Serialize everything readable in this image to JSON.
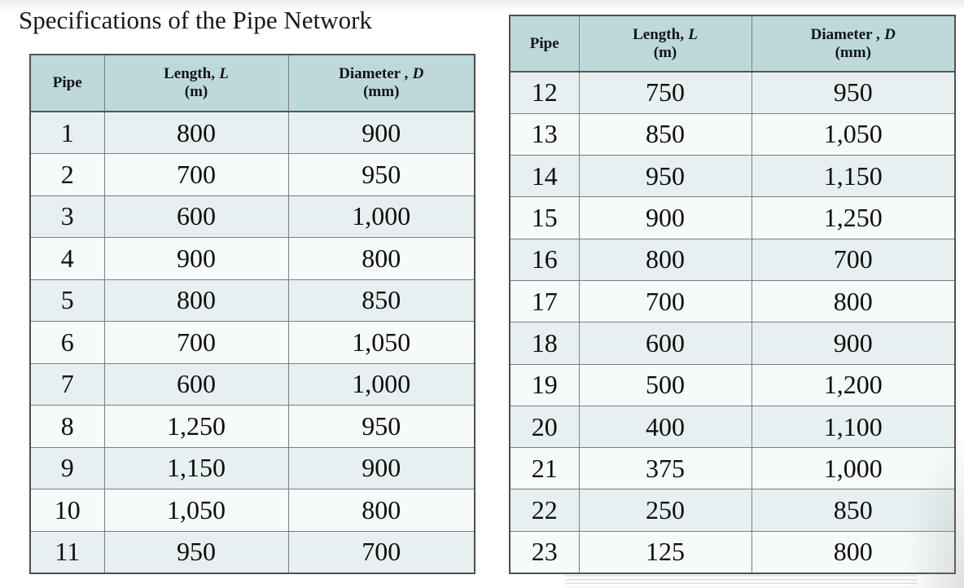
{
  "title": "Specifications of the Pipe Network",
  "colors": {
    "header_bg": "#bdd9dc",
    "row_dark": "#e7f0f1",
    "row_light": "#f6fafa",
    "grid_line": "#7d7d7d",
    "outer_border": "#4f4f4f",
    "text": "#0e0e0e",
    "page_bg": "#ffffff"
  },
  "table_header": {
    "pipe": "Pipe",
    "length_label": "Length,",
    "length_symbol": "L",
    "length_unit": "(m)",
    "diameter_label": "Diameter ,",
    "diameter_symbol": "D",
    "diameter_unit": "(mm)"
  },
  "left_table": {
    "rows": [
      {
        "pipe": "1",
        "length": "800",
        "diameter": "900"
      },
      {
        "pipe": "2",
        "length": "700",
        "diameter": "950"
      },
      {
        "pipe": "3",
        "length": "600",
        "diameter": "1,000"
      },
      {
        "pipe": "4",
        "length": "900",
        "diameter": "800"
      },
      {
        "pipe": "5",
        "length": "800",
        "diameter": "850"
      },
      {
        "pipe": "6",
        "length": "700",
        "diameter": "1,050"
      },
      {
        "pipe": "7",
        "length": "600",
        "diameter": "1,000"
      },
      {
        "pipe": "8",
        "length": "1,250",
        "diameter": "950"
      },
      {
        "pipe": "9",
        "length": "1,150",
        "diameter": "900"
      },
      {
        "pipe": "10",
        "length": "1,050",
        "diameter": "800"
      },
      {
        "pipe": "11",
        "length": "950",
        "diameter": "700"
      }
    ]
  },
  "right_table": {
    "rows": [
      {
        "pipe": "12",
        "length": "750",
        "diameter": "950"
      },
      {
        "pipe": "13",
        "length": "850",
        "diameter": "1,050"
      },
      {
        "pipe": "14",
        "length": "950",
        "diameter": "1,150"
      },
      {
        "pipe": "15",
        "length": "900",
        "diameter": "1,250"
      },
      {
        "pipe": "16",
        "length": "800",
        "diameter": "700"
      },
      {
        "pipe": "17",
        "length": "700",
        "diameter": "800"
      },
      {
        "pipe": "18",
        "length": "600",
        "diameter": "900"
      },
      {
        "pipe": "19",
        "length": "500",
        "diameter": "1,200"
      },
      {
        "pipe": "20",
        "length": "400",
        "diameter": "1,100"
      },
      {
        "pipe": "21",
        "length": "375",
        "diameter": "1,000"
      },
      {
        "pipe": "22",
        "length": "250",
        "diameter": "850"
      },
      {
        "pipe": "23",
        "length": "125",
        "diameter": "800"
      }
    ]
  }
}
